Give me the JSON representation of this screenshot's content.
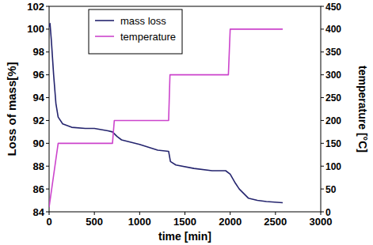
{
  "chart_data": {
    "type": "line",
    "xlabel": "time [min]",
    "ylabel": "Loss of mass[%]",
    "y2label": "temperature [°C]",
    "xlim": [
      0,
      3000
    ],
    "xticks": [
      0,
      500,
      1000,
      1500,
      2000,
      2500,
      3000
    ],
    "ylim": [
      84,
      102
    ],
    "yticks": [
      84,
      86,
      88,
      90,
      92,
      94,
      96,
      98,
      100,
      102
    ],
    "y2lim": [
      0,
      450
    ],
    "y2ticks": [
      0,
      50,
      100,
      150,
      200,
      250,
      300,
      350,
      400,
      450
    ],
    "grid": false,
    "legend": "upper left",
    "series": [
      {
        "name": "mass loss",
        "color": "#24246e",
        "x": [
          0,
          10,
          25,
          50,
          75,
          100,
          150,
          250,
          400,
          500,
          650,
          700,
          750,
          800,
          1000,
          1200,
          1320,
          1340,
          1400,
          1600,
          1800,
          1950,
          2000,
          2050,
          2100,
          2200,
          2300,
          2400,
          2580
        ],
        "values": [
          100.2,
          100.5,
          99.0,
          96.0,
          93.5,
          92.3,
          91.7,
          91.4,
          91.3,
          91.3,
          91.1,
          91.0,
          90.6,
          90.3,
          89.9,
          89.4,
          89.3,
          88.4,
          88.1,
          87.8,
          87.6,
          87.6,
          87.3,
          86.6,
          86.0,
          85.2,
          85.0,
          84.9,
          84.8
        ]
      },
      {
        "name": "temperature",
        "color": "#cc44cc",
        "axis": "y2",
        "x": [
          0,
          100,
          700,
          720,
          1320,
          1335,
          1980,
          2000,
          2580
        ],
        "values": [
          10,
          150,
          150,
          200,
          200,
          300,
          300,
          400,
          400
        ]
      }
    ]
  }
}
